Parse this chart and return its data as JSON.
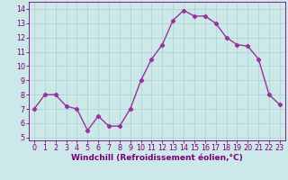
{
  "x": [
    0,
    1,
    2,
    3,
    4,
    5,
    6,
    7,
    8,
    9,
    10,
    11,
    12,
    13,
    14,
    15,
    16,
    17,
    18,
    19,
    20,
    21,
    22,
    23
  ],
  "y": [
    7.0,
    8.0,
    8.0,
    7.2,
    7.0,
    5.5,
    6.5,
    5.8,
    5.8,
    7.0,
    9.0,
    10.5,
    11.5,
    13.2,
    13.9,
    13.5,
    13.5,
    13.0,
    12.0,
    11.5,
    11.4,
    10.5,
    8.0,
    7.3
  ],
  "line_color": "#993399",
  "marker": "D",
  "marker_size": 2.2,
  "linewidth": 1.0,
  "bg_color": "#cce8e8",
  "grid_color": "#aad0d0",
  "xlabel": "Windchill (Refroidissement éolien,°C)",
  "xlabel_fontsize": 6.5,
  "xlabel_color": "#7a007a",
  "tick_color": "#7a007a",
  "tick_fontsize": 5.8,
  "ylim": [
    4.8,
    14.5
  ],
  "xlim": [
    -0.5,
    23.5
  ],
  "yticks": [
    5,
    6,
    7,
    8,
    9,
    10,
    11,
    12,
    13,
    14
  ],
  "xticks": [
    0,
    1,
    2,
    3,
    4,
    5,
    6,
    7,
    8,
    9,
    10,
    11,
    12,
    13,
    14,
    15,
    16,
    17,
    18,
    19,
    20,
    21,
    22,
    23
  ]
}
